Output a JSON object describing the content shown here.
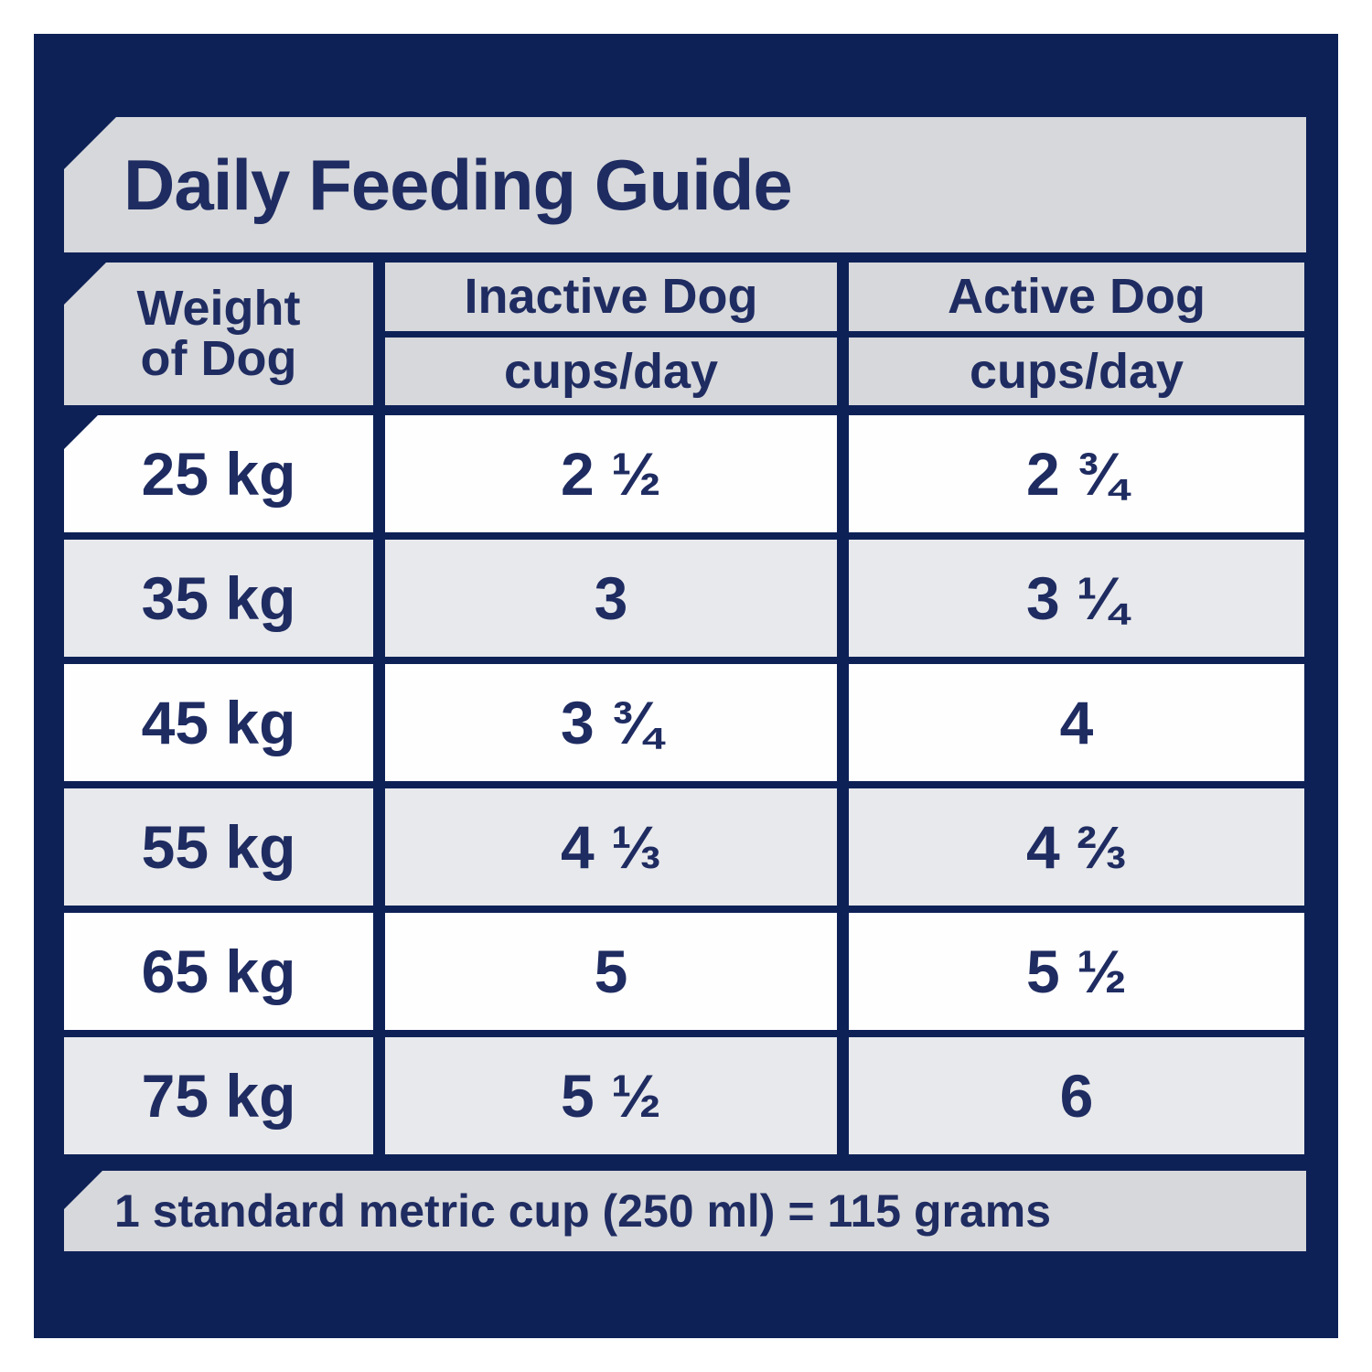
{
  "title": "Daily Feeding Guide",
  "columns": {
    "weight": {
      "line1": "Weight",
      "line2": "of Dog"
    },
    "inactive": {
      "label": "Inactive Dog",
      "unit": "cups/day"
    },
    "active": {
      "label": "Active Dog",
      "unit": "cups/day"
    }
  },
  "rows": [
    {
      "weight": "25 kg",
      "inactive": "2 ½",
      "active": "2 ¾"
    },
    {
      "weight": "35 kg",
      "inactive": "3",
      "active": "3 ¼"
    },
    {
      "weight": "45 kg",
      "inactive": "3 ¾",
      "active": "4"
    },
    {
      "weight": "55 kg",
      "inactive": "4 ⅓",
      "active": "4 ⅔"
    },
    {
      "weight": "65 kg",
      "inactive": "5",
      "active": "5 ½"
    },
    {
      "weight": "75 kg",
      "inactive": "5 ½",
      "active": "6"
    }
  ],
  "footer_note": "1 standard metric cup (250 ml) = 115 grams",
  "colors": {
    "panel_navy": "#0e2157",
    "text_navy": "#1f2c61",
    "banner_gray": "#d7d8db",
    "row_alt_gray": "#e8e9ec",
    "row_white": "#fefefe"
  }
}
